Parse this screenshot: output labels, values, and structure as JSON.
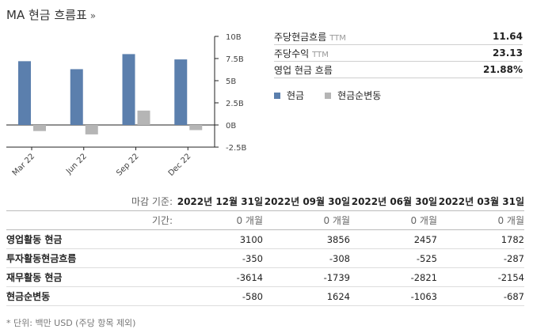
{
  "header": {
    "title": "MA 현금 흐름표",
    "chevron": "»"
  },
  "chart_data": {
    "type": "bar",
    "categories": [
      "Mar 22",
      "Jun 22",
      "Sep 22",
      "Dec 22"
    ],
    "series": [
      {
        "name": "현금",
        "color": "#5b7fad",
        "values": [
          7.2,
          6.3,
          8.0,
          7.4
        ]
      },
      {
        "name": "현금순변동",
        "color": "#b5b5b5",
        "values": [
          -0.687,
          -1.063,
          1.624,
          -0.58
        ]
      }
    ],
    "ylim": [
      -2.5,
      10
    ],
    "yticks": [
      10,
      7.5,
      5,
      2.5,
      0,
      -2.5
    ],
    "ytick_labels": [
      "10B",
      "7.5B",
      "5B",
      "2.5B",
      "0B",
      "-2.5B"
    ],
    "title": "",
    "xlabel": "",
    "ylabel": "",
    "grid": false,
    "legend": "right"
  },
  "stats": [
    {
      "label": "주당현금흐름",
      "ttm": "TTM",
      "value": "11.64"
    },
    {
      "label": "주당수익",
      "ttm": "TTM",
      "value": "23.13"
    },
    {
      "label": "영업 현금 흐름",
      "ttm": "",
      "value": "21.88%"
    }
  ],
  "legend": [
    {
      "label": "현금",
      "color": "#5b7fad"
    },
    {
      "label": "현금순변동",
      "color": "#b5b5b5"
    }
  ],
  "table": {
    "date_label": "마감 기준:",
    "dates": [
      "2022년 12월 31일",
      "2022년 09월 30일",
      "2022년 06월 30일",
      "2022년 03월 31일"
    ],
    "period_label": "기간:",
    "periods": [
      "0 개월",
      "0 개월",
      "0 개월",
      "0 개월"
    ],
    "rows": [
      {
        "name": "영업활동 현금",
        "values": [
          "3100",
          "3856",
          "2457",
          "1782"
        ]
      },
      {
        "name": "투자활동현금흐름",
        "values": [
          "-350",
          "-308",
          "-525",
          "-287"
        ]
      },
      {
        "name": "재무활동 현금",
        "values": [
          "-3614",
          "-1739",
          "-2821",
          "-2154"
        ]
      },
      {
        "name": "현금순변동",
        "values": [
          "-580",
          "1624",
          "-1063",
          "-687"
        ]
      }
    ]
  },
  "footnote": "* 단위: 백만 USD (주당 항목 제외)"
}
